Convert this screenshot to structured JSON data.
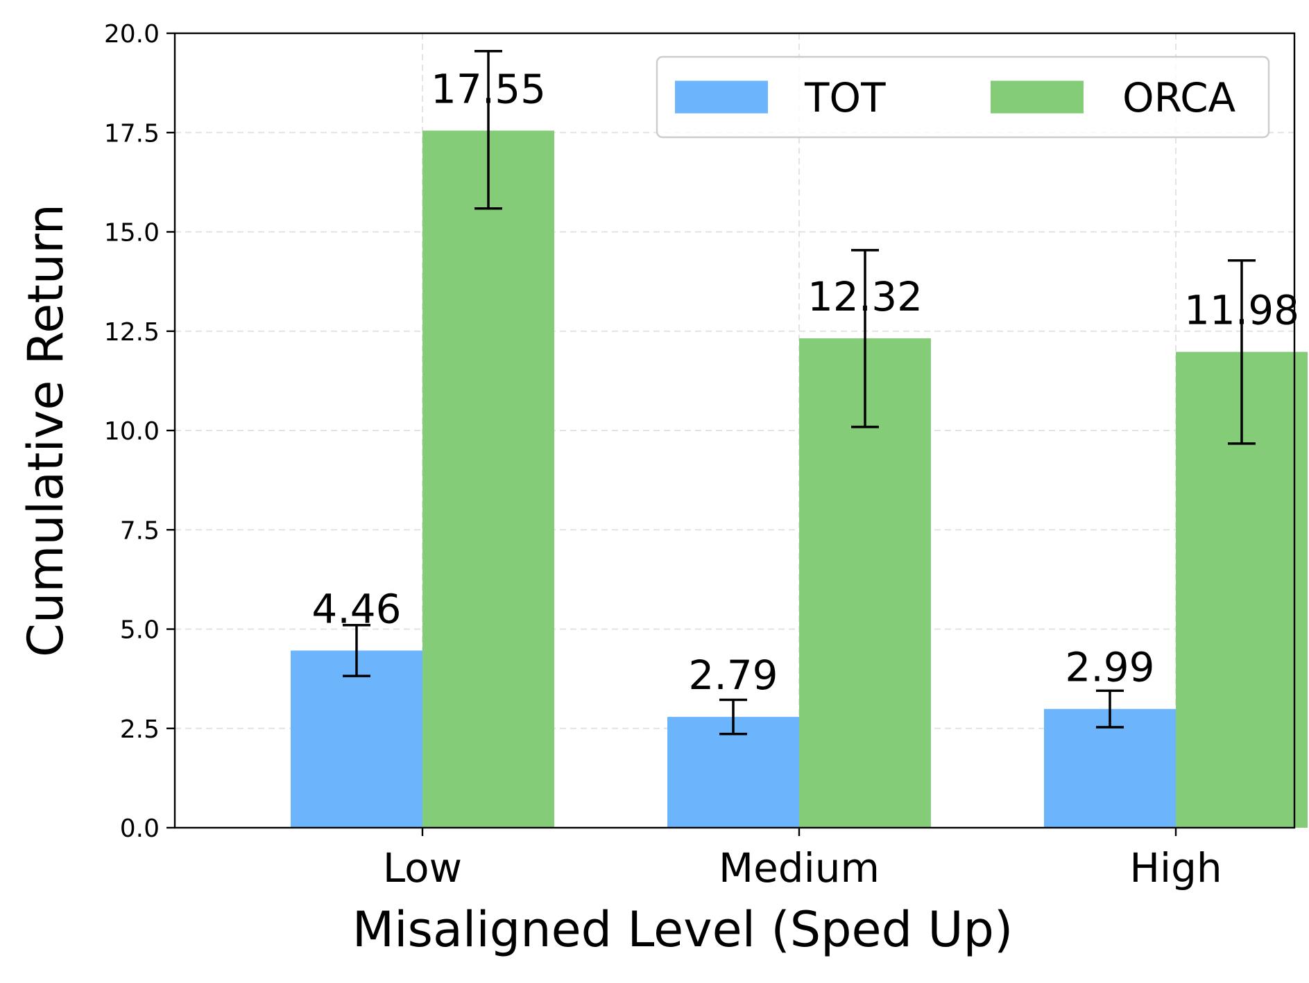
{
  "chart_data": {
    "type": "bar",
    "title": "",
    "xlabel": "Misaligned Level (Sped Up)",
    "ylabel": "Cumulative Return",
    "categories": [
      "Low",
      "Medium",
      "High"
    ],
    "ylim": [
      0,
      20
    ],
    "yticks": [
      "0.0",
      "2.5",
      "5.0",
      "7.5",
      "10.0",
      "12.5",
      "15.0",
      "17.5",
      "20.0"
    ],
    "grid": true,
    "legend_position": "top-right",
    "series": [
      {
        "name": "TOT",
        "color": "#6cb4fc",
        "values": [
          4.46,
          2.79,
          2.99
        ],
        "value_labels": [
          "4.46",
          "2.79",
          "2.99"
        ],
        "error_low": [
          3.82,
          2.36,
          2.53
        ],
        "error_high": [
          5.1,
          3.22,
          3.45
        ]
      },
      {
        "name": "ORCA",
        "color": "#84cc78",
        "values": [
          17.55,
          12.32,
          11.98
        ],
        "value_labels": [
          "17.55",
          "12.32",
          "11.98"
        ],
        "error_low": [
          15.59,
          10.09,
          9.67
        ],
        "error_high": [
          19.55,
          14.54,
          14.28
        ]
      }
    ]
  }
}
